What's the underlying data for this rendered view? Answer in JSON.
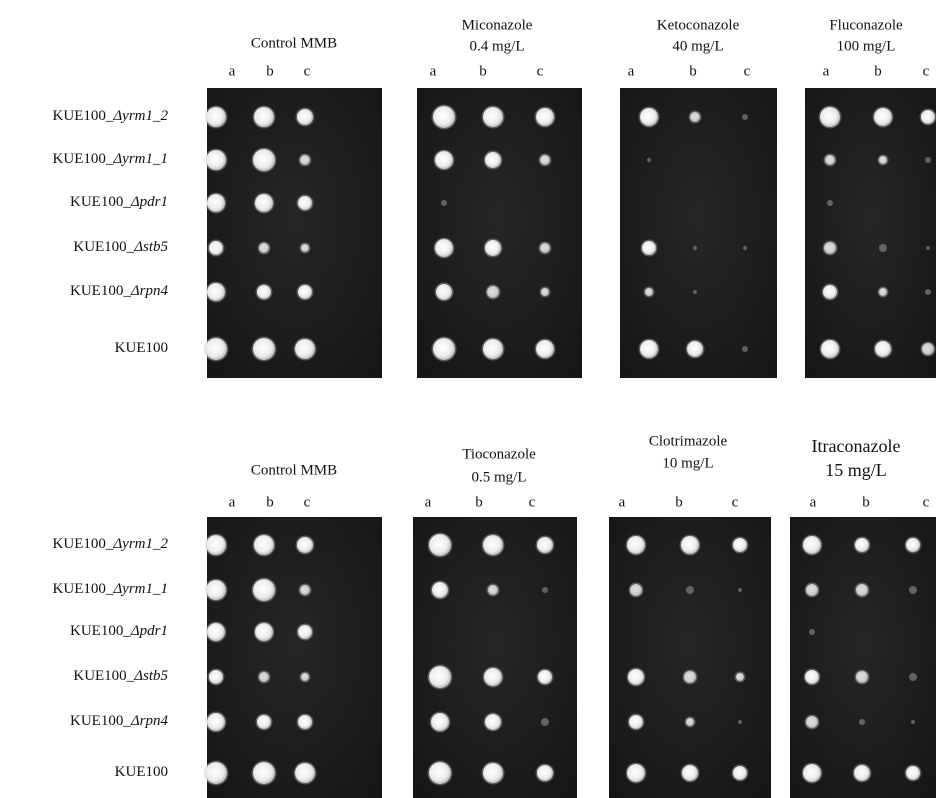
{
  "panels": [
    {
      "row_labels": [
        {
          "prefix": "KUE100_",
          "italic": "Δyrm1_2"
        },
        {
          "prefix": "KUE100_",
          "italic": "Δyrm1_1"
        },
        {
          "prefix": "KUE100_",
          "italic": "Δpdr1"
        },
        {
          "prefix": "KUE100_",
          "italic": "Δstb5"
        },
        {
          "prefix": "KUE100_",
          "italic": "Δrpn4"
        },
        {
          "prefix": "KUE100"
        }
      ],
      "plates": [
        {
          "header": [
            "Control MMB"
          ],
          "columns": [
            "a",
            "b",
            "c"
          ]
        },
        {
          "header": [
            "Miconazole",
            "0.4 mg/L"
          ],
          "columns": [
            "a",
            "b",
            "c"
          ]
        },
        {
          "header": [
            "Ketoconazole",
            "40 mg/L"
          ],
          "columns": [
            "a",
            "b",
            "c"
          ]
        },
        {
          "header": [
            "Fluconazole",
            "100 mg/L"
          ],
          "columns": [
            "a",
            "b",
            "c"
          ]
        }
      ]
    },
    {
      "row_labels": [
        {
          "prefix": "KUE100_",
          "italic": "Δyrm1_2"
        },
        {
          "prefix": "KUE100_",
          "italic": "Δyrm1_1"
        },
        {
          "prefix": "KUE100_",
          "italic": "Δpdr1"
        },
        {
          "prefix": "KUE100_",
          "italic": "Δstb5"
        },
        {
          "prefix": "KUE100_",
          "italic": "Δrpn4"
        },
        {
          "prefix": "KUE100"
        }
      ],
      "plates": [
        {
          "header": [
            "Control MMB"
          ],
          "columns": [
            "a",
            "b",
            "c"
          ]
        },
        {
          "header": [
            "Tioconazole",
            "0.5 mg/L"
          ],
          "columns": [
            "a",
            "b",
            "c"
          ]
        },
        {
          "header": [
            "Clotrimazole",
            "10 mg/L"
          ],
          "columns": [
            "a",
            "b",
            "c"
          ]
        },
        {
          "header": [
            "Itraconazole",
            "15 mg/L"
          ],
          "columns": [
            "a",
            "b",
            "c"
          ]
        }
      ]
    }
  ]
}
